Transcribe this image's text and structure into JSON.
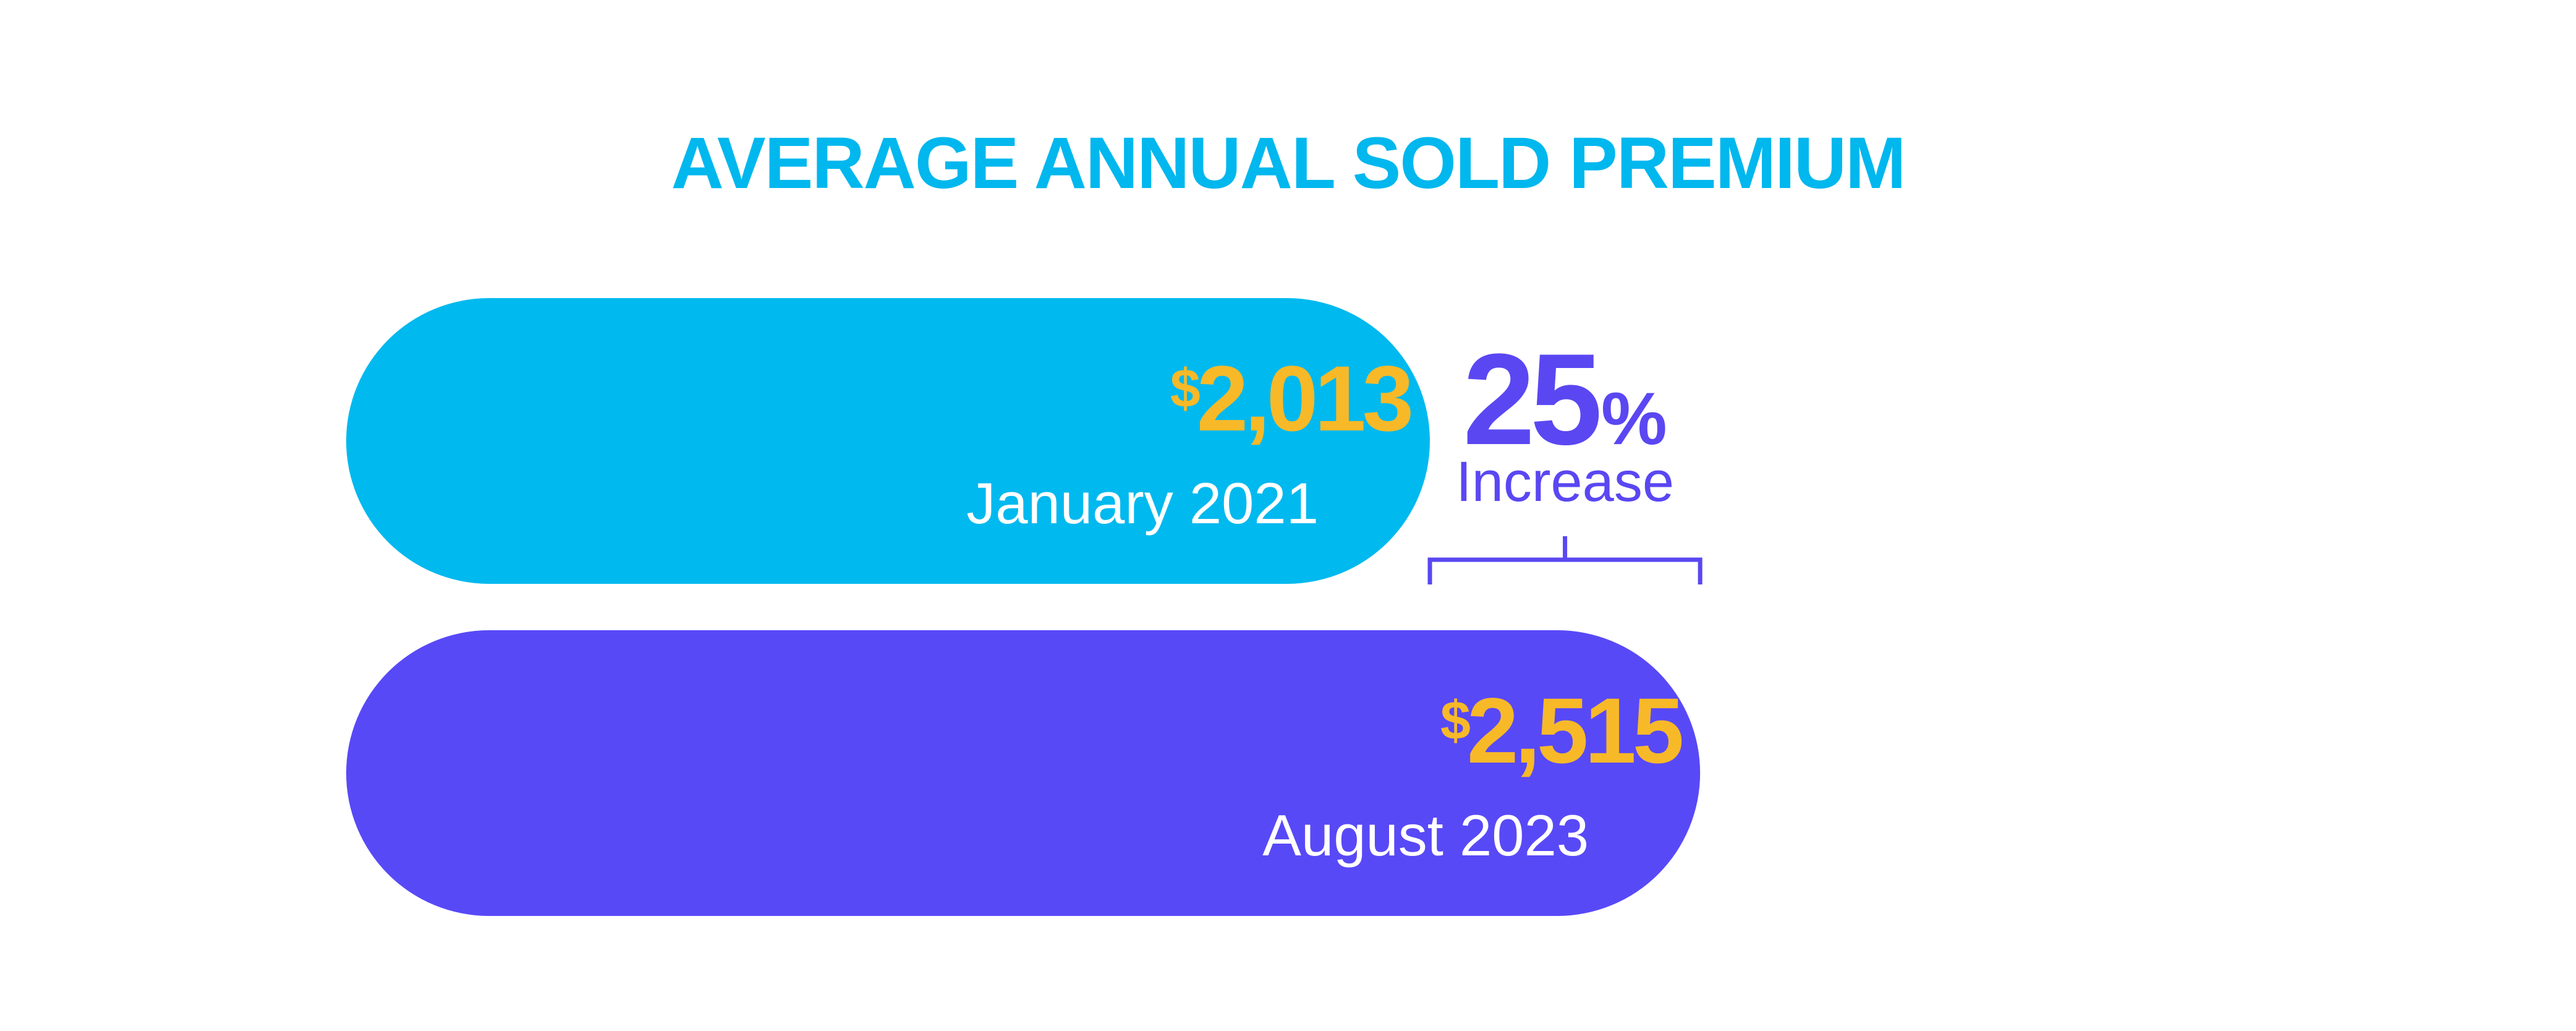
{
  "chart_data": {
    "type": "bar",
    "orientation": "horizontal",
    "title": "AVERAGE ANNUAL SOLD PREMIUM",
    "currency_symbol": "$",
    "categories": [
      "January 2021",
      "August 2023"
    ],
    "values": [
      2013,
      2515
    ],
    "value_labels": [
      "2,013",
      "2,515"
    ],
    "annotation": {
      "value": "25",
      "unit": "%",
      "label": "Increase"
    },
    "grid": false,
    "legend": "none"
  },
  "colors": {
    "title": "#00b7ee",
    "bar_1": "#00b9ef",
    "bar_2": "#5849f7",
    "value_text": "#f7b928",
    "category_text": "#ffffff",
    "annotation": "#5a47f2",
    "background": "#ffffff"
  }
}
